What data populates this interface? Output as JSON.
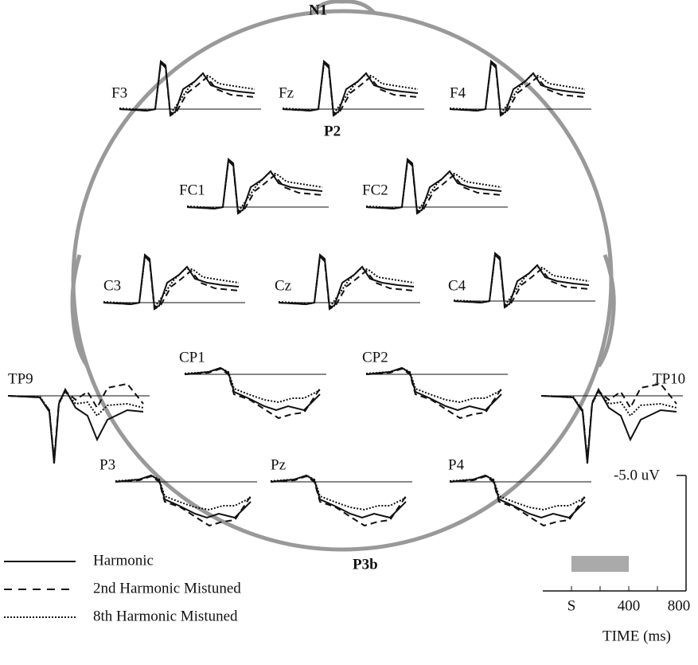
{
  "electrodes": [
    {
      "label": "F3",
      "shape": "front"
    },
    {
      "label": "Fz",
      "shape": "front"
    },
    {
      "label": "F4",
      "shape": "front"
    },
    {
      "label": "FC1",
      "shape": "front"
    },
    {
      "label": "FC2",
      "shape": "front"
    },
    {
      "label": "C3",
      "shape": "front"
    },
    {
      "label": "Cz",
      "shape": "front"
    },
    {
      "label": "C4",
      "shape": "front"
    },
    {
      "label": "CP1",
      "shape": "back"
    },
    {
      "label": "CP2",
      "shape": "back"
    },
    {
      "label": "TP9",
      "shape": "temporal"
    },
    {
      "label": "TP10",
      "shape": "temporal"
    },
    {
      "label": "P3",
      "shape": "back"
    },
    {
      "label": "Pz",
      "shape": "back"
    },
    {
      "label": "P4",
      "shape": "back"
    }
  ],
  "components": [
    "N1",
    "P2",
    "P3b"
  ],
  "legend": [
    {
      "label": "Harmonic",
      "style": "solid"
    },
    {
      "label": "2nd Harmonic Mistuned",
      "style": "dashed"
    },
    {
      "label": "8th Harmonic Mistuned",
      "style": "dotted"
    }
  ],
  "scale": {
    "amplitude": "-5.0 uV",
    "time_ticks": [
      "S",
      "400",
      "800"
    ],
    "time_label": "TIME (ms)"
  }
}
